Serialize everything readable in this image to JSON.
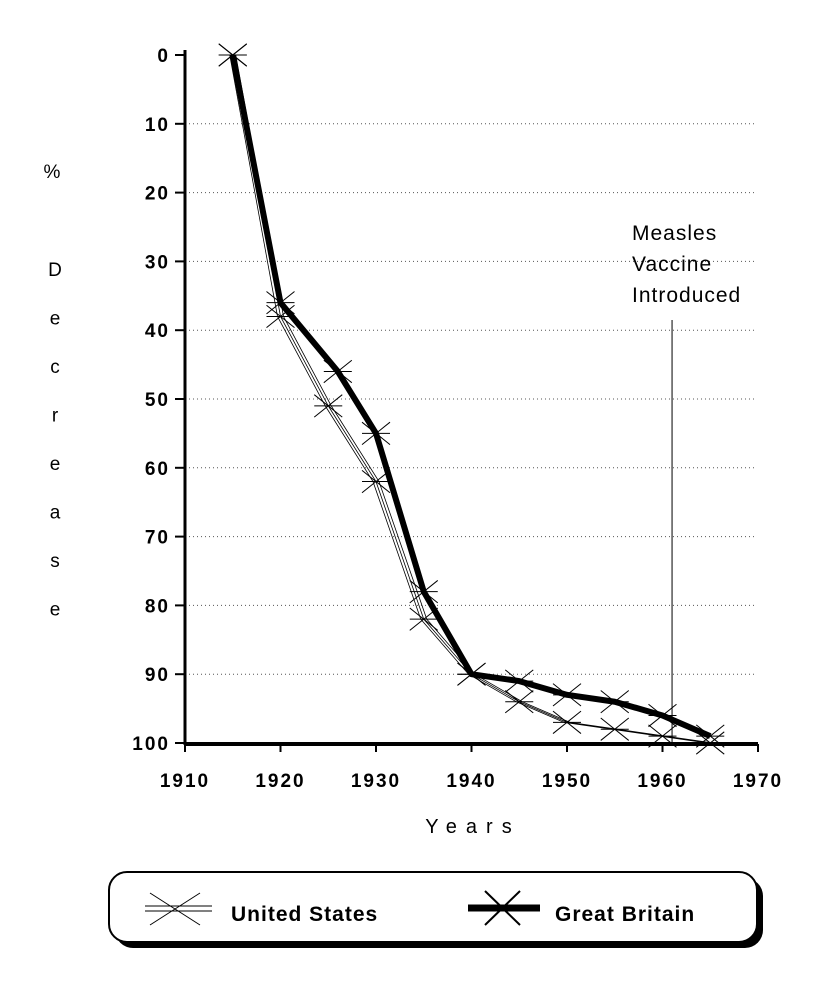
{
  "chart_data": {
    "type": "line",
    "xlabel": "Years",
    "ylabel": "% Decrease",
    "ylabel_symbol": "%",
    "ylabel_word": "Decrease",
    "xlim": [
      1910,
      1970
    ],
    "ylim": [
      0,
      100
    ],
    "y_inverted": true,
    "x_ticks": [
      "1910",
      "1920",
      "1930",
      "1940",
      "1950",
      "1960",
      "1970"
    ],
    "y_ticks": [
      "0",
      "10",
      "20",
      "30",
      "40",
      "50",
      "60",
      "70",
      "80",
      "90",
      "100"
    ],
    "grid": "dotted horizontal",
    "legend_position": "bottom",
    "series": [
      {
        "name": "United States",
        "style": "thin",
        "x": [
          1915,
          1920,
          1925,
          1930,
          1935,
          1940,
          1945,
          1950,
          1955,
          1960,
          1965
        ],
        "y": [
          0,
          38,
          51,
          62,
          82,
          90,
          94,
          97,
          98,
          99,
          100
        ]
      },
      {
        "name": "Great Britain",
        "style": "thick",
        "x": [
          1915,
          1920,
          1926,
          1930,
          1935,
          1940,
          1945,
          1950,
          1955,
          1960,
          1965
        ],
        "y": [
          0,
          36,
          46,
          55,
          78,
          90,
          91,
          93,
          94,
          96,
          99
        ]
      }
    ],
    "annotations": [
      {
        "x": 1961,
        "lines": [
          "Measles",
          "Vaccine",
          "Introduced"
        ]
      }
    ]
  }
}
